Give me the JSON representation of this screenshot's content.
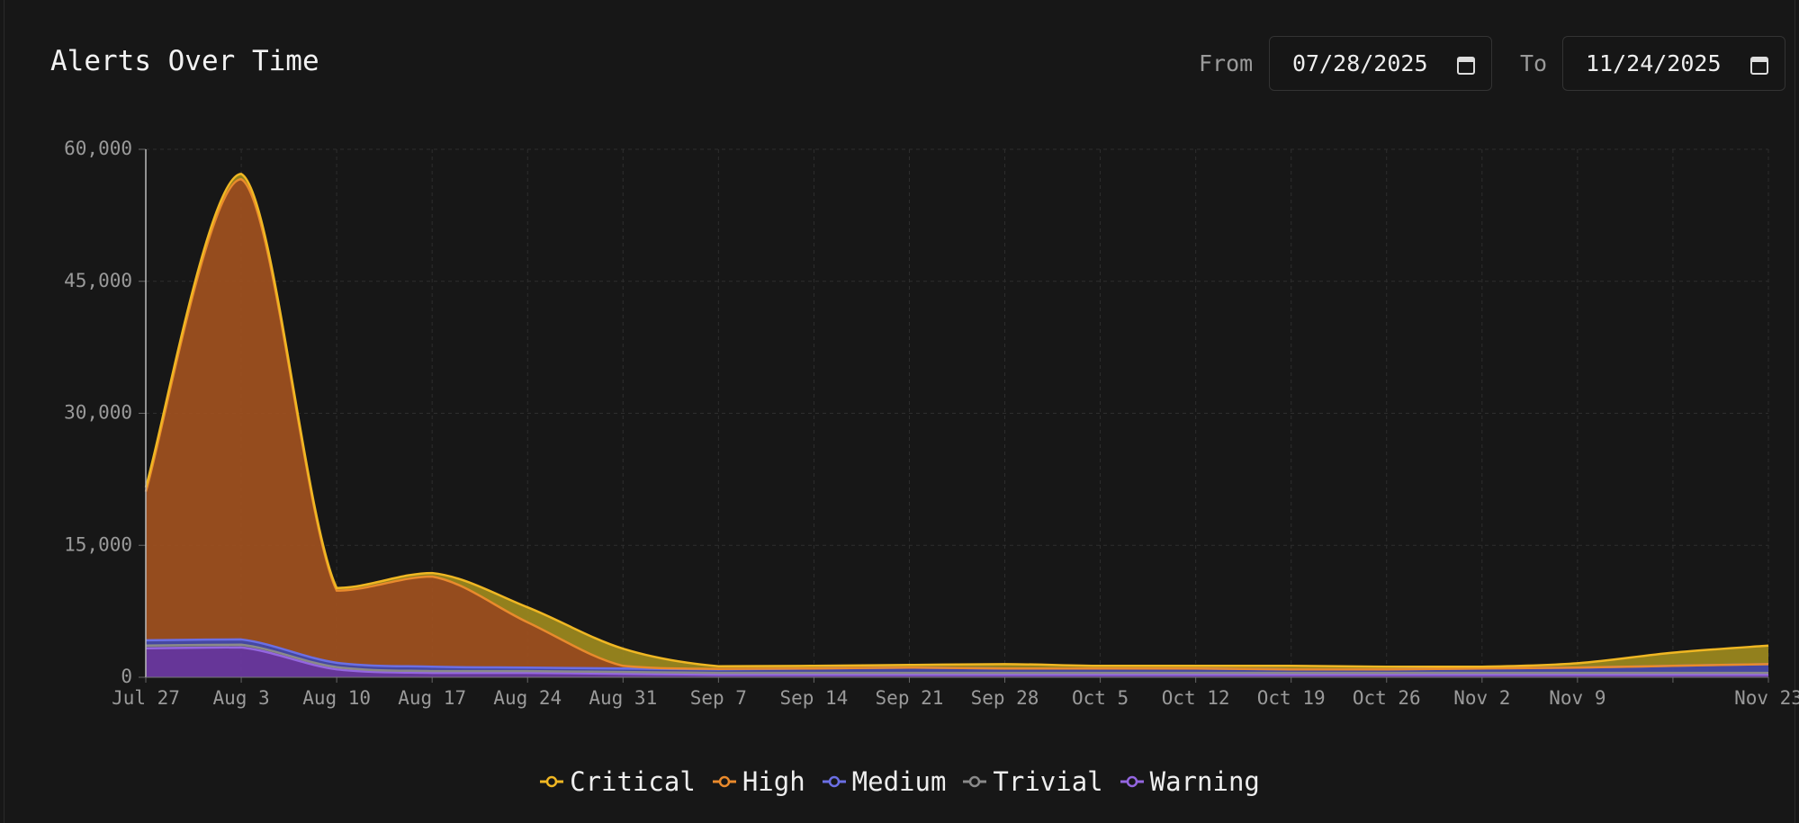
{
  "controls": {
    "from_label": "From",
    "from_value": "07/28/2025",
    "to_label": "To",
    "to_value": "11/24/2025"
  },
  "chart_data": {
    "type": "area",
    "stacked": true,
    "title": "Alerts Over Time",
    "categories": [
      "Jul 27",
      "Aug 3",
      "Aug 10",
      "Aug 17",
      "Aug 24",
      "Aug 31",
      "Sep 7",
      "Sep 14",
      "Sep 21",
      "Sep 28",
      "Oct 5",
      "Oct 12",
      "Oct 19",
      "Oct 26",
      "Nov 2",
      "Nov 9",
      null,
      "Nov 23"
    ],
    "series": [
      {
        "name": "Critical",
        "color": "#f0b723",
        "fill": "#a08c1e",
        "values": [
          500,
          600,
          300,
          400,
          1700,
          1950,
          300,
          300,
          300,
          500,
          300,
          300,
          400,
          300,
          200,
          500,
          1500,
          2100
        ]
      },
      {
        "name": "High",
        "color": "#e98a2c",
        "fill": "#a3521f",
        "values": [
          16900,
          52300,
          8200,
          10250,
          5150,
          300,
          50,
          0,
          0,
          0,
          0,
          0,
          0,
          0,
          0,
          0,
          0,
          0
        ]
      },
      {
        "name": "Medium",
        "color": "#6b6fe4",
        "fill": "#4a4cb0",
        "values": [
          600,
          600,
          500,
          500,
          400,
          400,
          400,
          500,
          600,
          500,
          500,
          500,
          400,
          400,
          500,
          600,
          800,
          1000
        ]
      },
      {
        "name": "Trivial",
        "color": "#8a8a8a",
        "fill": "#5a5a5a",
        "values": [
          300,
          300,
          250,
          200,
          200,
          200,
          200,
          200,
          200,
          200,
          200,
          200,
          200,
          200,
          200,
          200,
          200,
          200
        ]
      },
      {
        "name": "Warning",
        "color": "#9466e0",
        "fill": "#6f3aa6",
        "values": [
          3300,
          3400,
          900,
          500,
          500,
          400,
          300,
          300,
          300,
          300,
          300,
          300,
          300,
          300,
          300,
          300,
          300,
          300
        ]
      }
    ],
    "ylim": [
      0,
      60000
    ],
    "yticks": [
      0,
      {
        "value": 15000,
        "label": "15,000"
      },
      {
        "value": 30000,
        "label": "30,000"
      },
      {
        "value": 45000,
        "label": "45,000"
      },
      {
        "value": 60000,
        "label": "60,000"
      }
    ],
    "grid": true,
    "legend": "bottom"
  }
}
